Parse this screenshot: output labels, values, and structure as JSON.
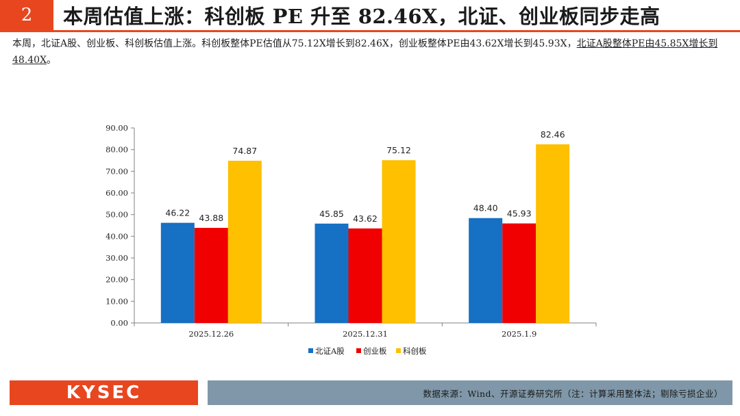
{
  "header": {
    "number": "2",
    "title": "本周估值上涨：科创板 PE 升至 82.46X，北证、创业板同步走高"
  },
  "summary": {
    "text_main": "本周，北证A股、创业板、科创板估值上涨。科创板整体PE估值从75.12X增长到82.46X，创业板整体PE由43.62X增长到45.93X，",
    "text_underlined": "北证A股整体PE由45.85X增长到48.40X",
    "text_end": "。"
  },
  "chart_data": {
    "type": "bar",
    "title": "",
    "xlabel": "",
    "ylabel": "",
    "categories": [
      "2025.12.26",
      "2025.12.31",
      "2025.1.9"
    ],
    "series": [
      {
        "name": "北证A股",
        "color": "#1670c4",
        "values": [
          46.22,
          45.85,
          48.4
        ],
        "labels": [
          "46.22",
          "45.85",
          "48.40"
        ]
      },
      {
        "name": "创业板",
        "color": "#f00000",
        "values": [
          43.88,
          43.62,
          45.93
        ],
        "labels": [
          "43.88",
          "43.62",
          "45.93"
        ]
      },
      {
        "name": "科创板",
        "color": "#ffc000",
        "values": [
          74.87,
          75.12,
          82.46
        ],
        "labels": [
          "74.87",
          "75.12",
          "82.46"
        ]
      }
    ],
    "ylim": [
      0,
      90
    ],
    "yticks": [
      "0.00",
      "10.00",
      "20.00",
      "30.00",
      "40.00",
      "50.00",
      "60.00",
      "70.00",
      "80.00",
      "90.00"
    ],
    "grid": false,
    "legend": "bottom"
  },
  "footer": {
    "logo": "KYSEC",
    "source": "数据来源：Wind、开源证券研究所（注：计算采用整体法；剔除亏损企业）"
  }
}
